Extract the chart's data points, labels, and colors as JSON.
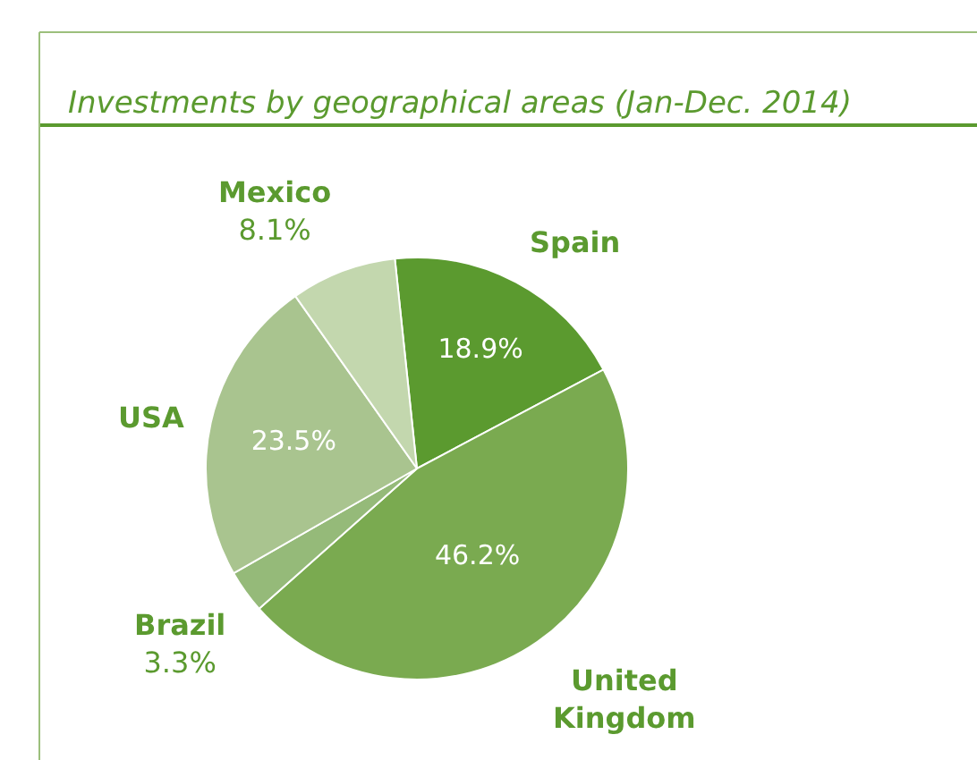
{
  "chart_data": {
    "type": "pie",
    "title": "Investments by geographical areas (Jan-Dec. 2014)",
    "categories": [
      "Spain",
      "United Kingdom",
      "Brazil",
      "USA",
      "Mexico"
    ],
    "values": [
      18.9,
      46.2,
      3.3,
      23.5,
      8.1
    ],
    "value_labels": [
      "18.9%",
      "46.2%",
      "3.3%",
      "23.5%",
      "8.1%"
    ],
    "colors": [
      "#5b9a2f",
      "#7aaa50",
      "#95ba79",
      "#a9c48f",
      "#c3d7ae"
    ],
    "legend": false
  }
}
